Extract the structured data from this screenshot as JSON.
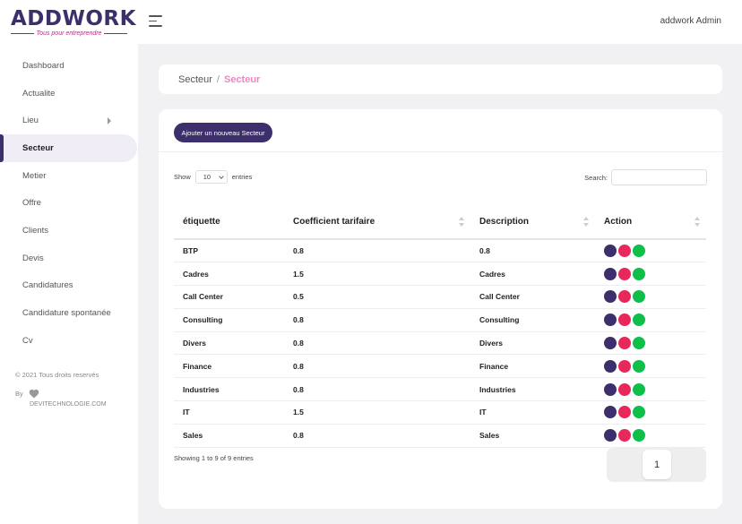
{
  "brand": {
    "name": "ADDWORK",
    "tagline": "Tous pour entreprendre"
  },
  "topbar": {
    "user": "addwork Admin"
  },
  "sidebar": {
    "items": [
      {
        "label": "Dashboard"
      },
      {
        "label": "Actualite"
      },
      {
        "label": "Lieu",
        "has_submenu": true
      },
      {
        "label": "Secteur",
        "active": true
      },
      {
        "label": "Metier"
      },
      {
        "label": "Offre"
      },
      {
        "label": "Clients"
      },
      {
        "label": "Devis"
      },
      {
        "label": "Candidatures"
      },
      {
        "label": "Candidature spontanée"
      },
      {
        "label": "Cv"
      }
    ],
    "footer": {
      "copyright": "© 2021 Tous droits reservés",
      "by": "By",
      "company": "DEVITECHNOLOGIE.COM"
    }
  },
  "breadcrumb": {
    "home": "Secteur",
    "separator": "/",
    "current": "Secteur"
  },
  "toolbar": {
    "add_label": "Ajouter un nouveau Secteur"
  },
  "datatable": {
    "show_label": "Show",
    "entries_label": "entries",
    "page_size": "10",
    "search_label": "Search:",
    "search_value": "",
    "columns": [
      "étiquette",
      "Coefficient tarifaire",
      "Description",
      "Action"
    ],
    "rows": [
      [
        "BTP",
        "0.8",
        "0.8"
      ],
      [
        "Cadres",
        "1.5",
        "Cadres"
      ],
      [
        "Call Center",
        "0.5",
        "Call Center"
      ],
      [
        "Consulting",
        "0.8",
        "Consulting"
      ],
      [
        "Divers",
        "0.8",
        "Divers"
      ],
      [
        "Finance",
        "0.8",
        "Finance"
      ],
      [
        "Industries",
        "0.8",
        "Industries"
      ],
      [
        "IT",
        "1.5",
        "IT"
      ],
      [
        "Sales",
        "0.8",
        "Sales"
      ]
    ],
    "info": "Showing 1 to 9 of 9 entries",
    "current_page": "1"
  },
  "colors": {
    "primary": "#3d2f6b",
    "accent_pink": "#e88ac0",
    "action_view": "#3d2f6b",
    "action_delete": "#e8285a",
    "action_edit": "#0fbf4a"
  },
  "icons": {
    "menu": "hamburger-icon",
    "heart": "heart-icon",
    "sort": "sort-icon",
    "submenu": "chevron-right-icon"
  }
}
